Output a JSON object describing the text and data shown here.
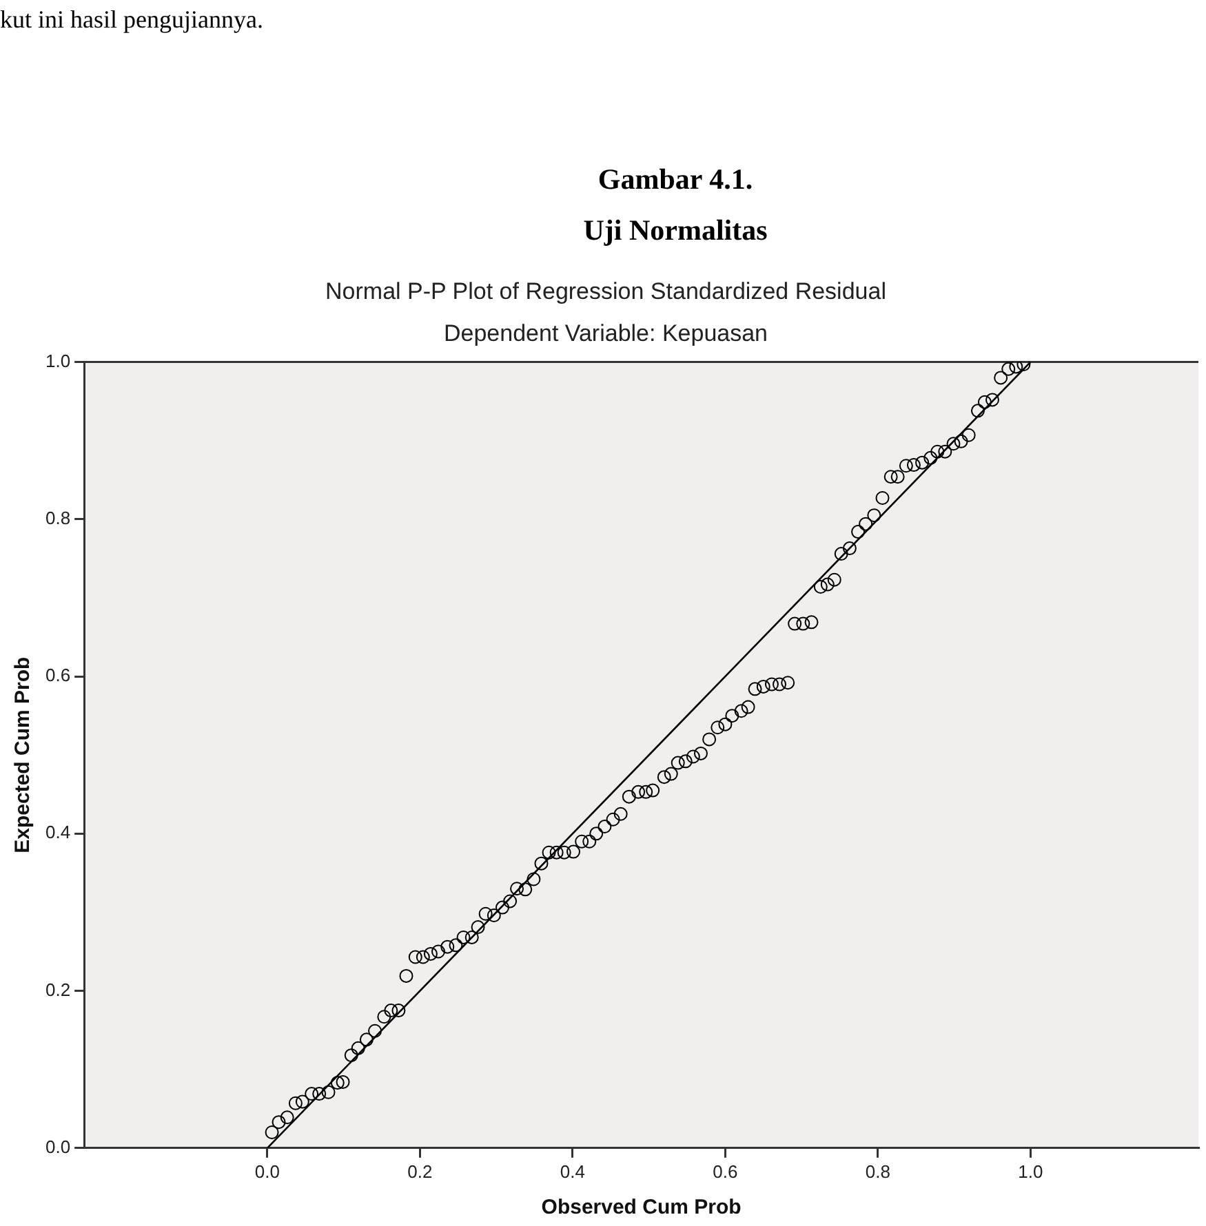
{
  "chart_data": {
    "type": "scatter",
    "title": "Normal P-P Plot of Regression Standardized Residual",
    "subtitle": "Dependent Variable: Kepuasan",
    "annotations": [
      "kut ini hasil pengujiannya.",
      "Gambar 4.1.",
      "Uji Normalitas"
    ],
    "xlabel": "Observed Cum Prob",
    "ylabel": "Expected Cum Prob",
    "xlim": [
      -0.24,
      1.22
    ],
    "ylim": [
      0,
      1
    ],
    "xticks": [
      {
        "value": 0,
        "label": "0.0"
      },
      {
        "value": 0.2,
        "label": "0.2"
      },
      {
        "value": 0.4,
        "label": "0.4"
      },
      {
        "value": 0.6,
        "label": "0.6"
      },
      {
        "value": 0.8,
        "label": "0.8"
      },
      {
        "value": 1,
        "label": "1.0"
      }
    ],
    "yticks": [
      {
        "value": 0,
        "label": "0.0"
      },
      {
        "value": 0.2,
        "label": "0.2"
      },
      {
        "value": 0.4,
        "label": "0.4"
      },
      {
        "value": 0.6,
        "label": "0.6"
      },
      {
        "value": 0.8,
        "label": "0.8"
      },
      {
        "value": 1,
        "label": "1.0"
      }
    ],
    "grid": false,
    "legend": false,
    "marker": "circle",
    "series": [
      {
        "color": "#000000",
        "x": [
          0.006,
          0.015,
          0.026,
          0.037,
          0.046,
          0.058,
          0.068,
          0.08,
          0.092,
          0.099,
          0.11,
          0.119,
          0.13,
          0.141,
          0.153,
          0.162,
          0.172,
          0.182,
          0.194,
          0.204,
          0.214,
          0.224,
          0.236,
          0.247,
          0.257,
          0.268,
          0.276,
          0.286,
          0.297,
          0.308,
          0.318,
          0.327,
          0.338,
          0.349,
          0.359,
          0.369,
          0.379,
          0.389,
          0.401,
          0.412,
          0.422,
          0.431,
          0.442,
          0.453,
          0.463,
          0.474,
          0.486,
          0.496,
          0.505,
          0.52,
          0.529,
          0.538,
          0.548,
          0.558,
          0.568,
          0.579,
          0.59,
          0.6,
          0.609,
          0.621,
          0.63,
          0.639,
          0.65,
          0.661,
          0.671,
          0.682,
          0.691,
          0.702,
          0.713,
          0.725,
          0.734,
          0.743,
          0.752,
          0.763,
          0.774,
          0.784,
          0.795,
          0.806,
          0.817,
          0.826,
          0.837,
          0.847,
          0.858,
          0.869,
          0.878,
          0.888,
          0.899,
          0.909,
          0.919,
          0.931,
          0.94,
          0.95,
          0.961,
          0.971,
          0.981,
          0.991
        ],
        "values": [
          0.02,
          0.033,
          0.039,
          0.057,
          0.059,
          0.069,
          0.069,
          0.071,
          0.083,
          0.084,
          0.118,
          0.127,
          0.138,
          0.149,
          0.167,
          0.175,
          0.175,
          0.219,
          0.243,
          0.243,
          0.247,
          0.25,
          0.256,
          0.258,
          0.268,
          0.268,
          0.281,
          0.298,
          0.296,
          0.306,
          0.314,
          0.33,
          0.329,
          0.342,
          0.362,
          0.376,
          0.376,
          0.376,
          0.377,
          0.39,
          0.39,
          0.4,
          0.409,
          0.418,
          0.425,
          0.447,
          0.453,
          0.453,
          0.455,
          0.472,
          0.476,
          0.49,
          0.492,
          0.498,
          0.502,
          0.52,
          0.535,
          0.539,
          0.55,
          0.556,
          0.561,
          0.584,
          0.587,
          0.59,
          0.59,
          0.592,
          0.667,
          0.667,
          0.669,
          0.714,
          0.717,
          0.723,
          0.756,
          0.763,
          0.784,
          0.794,
          0.805,
          0.827,
          0.854,
          0.854,
          0.868,
          0.869,
          0.872,
          0.878,
          0.886,
          0.886,
          0.896,
          0.899,
          0.907,
          0.938,
          0.949,
          0.952,
          0.98,
          0.991,
          0.994,
          0.997
        ]
      },
      {
        "type": "line",
        "color": "#000000",
        "marker": "none",
        "line_style": "solid",
        "x": [
          0,
          1
        ],
        "values": [
          0,
          1
        ]
      }
    ]
  }
}
